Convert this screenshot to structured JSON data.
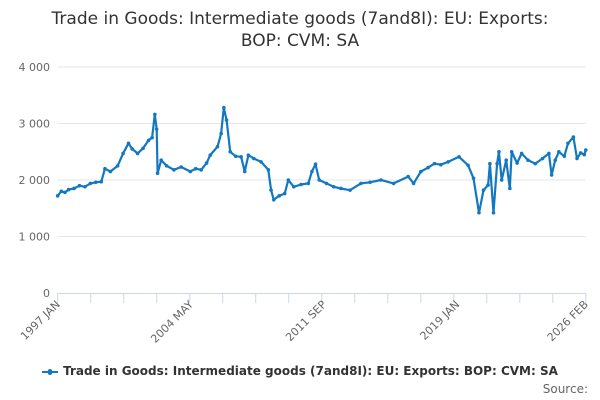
{
  "chart_data": {
    "type": "line",
    "title_lines": [
      "Trade in Goods: Intermediate goods (7and8I): EU: Exports:",
      "BOP: CVM: SA"
    ],
    "xlabel": "",
    "ylabel": "",
    "ylim": [
      0,
      4000
    ],
    "yticks": [
      0,
      1000,
      2000,
      3000,
      4000
    ],
    "ytick_labels": [
      "0",
      "1 000",
      "2 000",
      "3 000",
      "4 000"
    ],
    "xlim": [
      1997.0,
      2026.083
    ],
    "xtick_labels": [
      "1997 JAN",
      "2004 MAY",
      "2011 SEP",
      "2019 JAN",
      "2026 FEB"
    ],
    "xtick_values": [
      1997.0,
      2004.333,
      2011.667,
      2019.0,
      2026.083
    ],
    "grid": true,
    "legend_position": "bottom",
    "series": [
      {
        "name": "Trade in Goods: Intermediate goods (7and8I): EU: Exports: BOP: CVM: SA",
        "color": "#1378c0",
        "x": [
          1997.0,
          1997.2,
          1997.4,
          1997.6,
          1997.9,
          1998.2,
          1998.5,
          1998.8,
          1999.1,
          1999.4,
          1999.6,
          1999.9,
          2000.3,
          2000.6,
          2000.9,
          2001.1,
          2001.4,
          2001.7,
          2002.0,
          2002.2,
          2002.35,
          2002.45,
          2002.5,
          2002.7,
          2003.0,
          2003.4,
          2003.8,
          2004.3,
          2004.6,
          2004.9,
          2005.2,
          2005.4,
          2005.8,
          2006.0,
          2006.15,
          2006.3,
          2006.5,
          2006.8,
          2007.1,
          2007.3,
          2007.5,
          2007.8,
          2008.2,
          2008.6,
          2008.75,
          2008.9,
          2009.2,
          2009.5,
          2009.7,
          2010.0,
          2010.4,
          2010.8,
          2011.0,
          2011.2,
          2011.4,
          2011.8,
          2012.2,
          2012.6,
          2013.1,
          2013.7,
          2014.2,
          2014.8,
          2015.5,
          2016.3,
          2016.6,
          2017.0,
          2017.4,
          2017.75,
          2018.1,
          2018.5,
          2019.1,
          2019.6,
          2019.9,
          2020.2,
          2020.45,
          2020.7,
          2020.8,
          2021.0,
          2021.2,
          2021.3,
          2021.45,
          2021.7,
          2021.9,
          2022.0,
          2022.3,
          2022.55,
          2022.9,
          2023.3,
          2023.7,
          2024.05,
          2024.2,
          2024.4,
          2024.6,
          2024.9,
          2025.1,
          2025.4,
          2025.6,
          2025.8,
          2026.0,
          2026.083
        ],
        "values": [
          1720,
          1800,
          1780,
          1830,
          1850,
          1900,
          1880,
          1940,
          1960,
          1970,
          2200,
          2150,
          2250,
          2470,
          2650,
          2550,
          2470,
          2560,
          2700,
          2750,
          3160,
          2900,
          2120,
          2350,
          2250,
          2180,
          2230,
          2150,
          2200,
          2180,
          2300,
          2440,
          2590,
          2820,
          3280,
          3060,
          2500,
          2420,
          2410,
          2150,
          2440,
          2380,
          2320,
          2180,
          1820,
          1650,
          1720,
          1760,
          2000,
          1880,
          1920,
          1940,
          2150,
          2280,
          2000,
          1940,
          1880,
          1850,
          1820,
          1940,
          1960,
          2000,
          1940,
          2060,
          1940,
          2150,
          2220,
          2290,
          2270,
          2320,
          2410,
          2260,
          2030,
          1420,
          1820,
          1910,
          2290,
          1420,
          2290,
          2500,
          2000,
          2350,
          1850,
          2500,
          2300,
          2470,
          2350,
          2290,
          2380,
          2470,
          2090,
          2350,
          2500,
          2420,
          2650,
          2760,
          2380,
          2480,
          2450,
          2530
        ]
      }
    ]
  },
  "legend": {
    "label": "Trade in Goods: Intermediate goods (7and8I): EU: Exports: BOP: CVM: SA"
  },
  "source": "Source:"
}
